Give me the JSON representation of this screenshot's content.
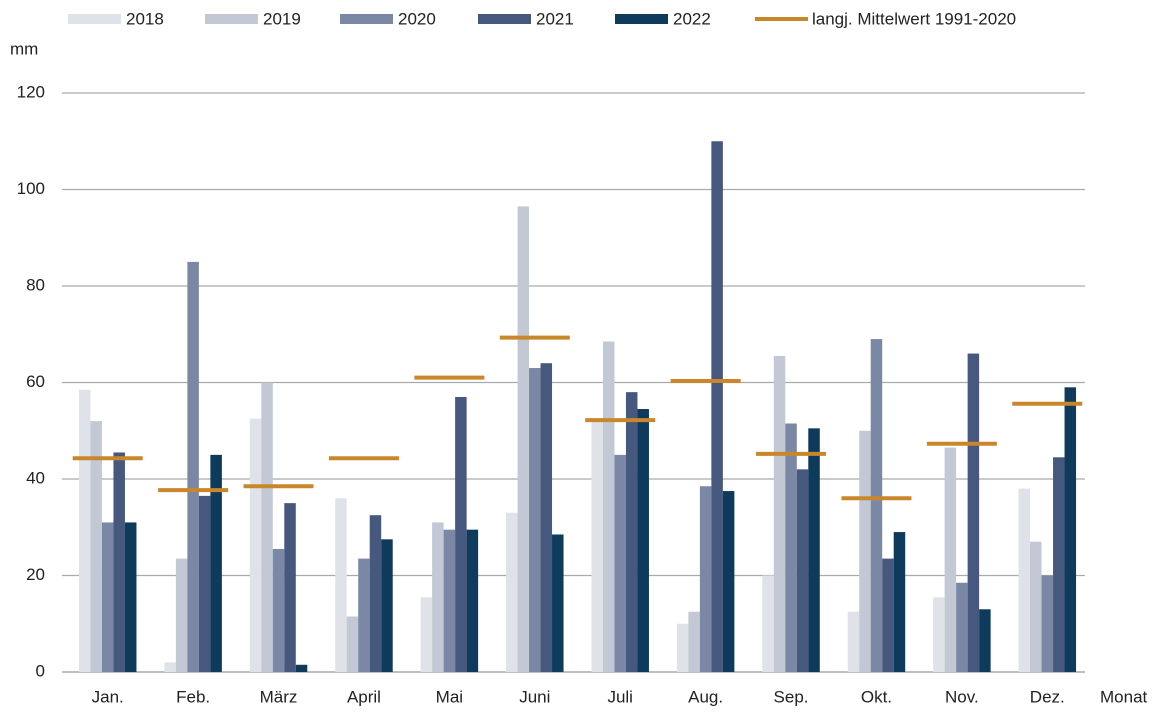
{
  "chart_data": {
    "type": "bar",
    "y_label": "mm",
    "x_label": "Monat",
    "categories": [
      "Jan.",
      "Feb.",
      "März",
      "April",
      "Mai",
      "Juni",
      "Juli",
      "Aug.",
      "Sep.",
      "Okt.",
      "Nov.",
      "Dez."
    ],
    "series": [
      {
        "name": "2018",
        "color": "#dfe2e8",
        "values": [
          58.5,
          2,
          52.5,
          36,
          15.5,
          33,
          52,
          10,
          20,
          12.5,
          15.5,
          38
        ]
      },
      {
        "name": "2019",
        "color": "#c3c8d5",
        "values": [
          52,
          23.5,
          60,
          11.5,
          31,
          96.5,
          68.5,
          12.5,
          65.5,
          50,
          46.5,
          27
        ]
      },
      {
        "name": "2020",
        "color": "#7a88a6",
        "values": [
          31,
          85,
          25.5,
          23.5,
          29.5,
          63,
          45,
          38.5,
          51.5,
          69,
          18.5,
          20
        ]
      },
      {
        "name": "2021",
        "color": "#47587f",
        "values": [
          45.5,
          36.5,
          35,
          32.5,
          57,
          64,
          58,
          110,
          42,
          23.5,
          66,
          44.5
        ]
      },
      {
        "name": "2022",
        "color": "#0e3a5c",
        "values": [
          31,
          45,
          1.5,
          27.5,
          29.5,
          28.5,
          54.5,
          37.5,
          50.5,
          29,
          13,
          59
        ]
      }
    ],
    "mean": {
      "name": "langj. Mittelwert 1991-2020",
      "color": "#c8872a",
      "values": [
        44.3,
        37.7,
        38.5,
        44.3,
        61,
        69.3,
        52.2,
        60.3,
        45.2,
        36,
        47.3,
        55.6
      ]
    },
    "ylim": [
      0,
      120
    ],
    "yticks": [
      0,
      20,
      40,
      60,
      80,
      100,
      120
    ],
    "grid": true
  }
}
